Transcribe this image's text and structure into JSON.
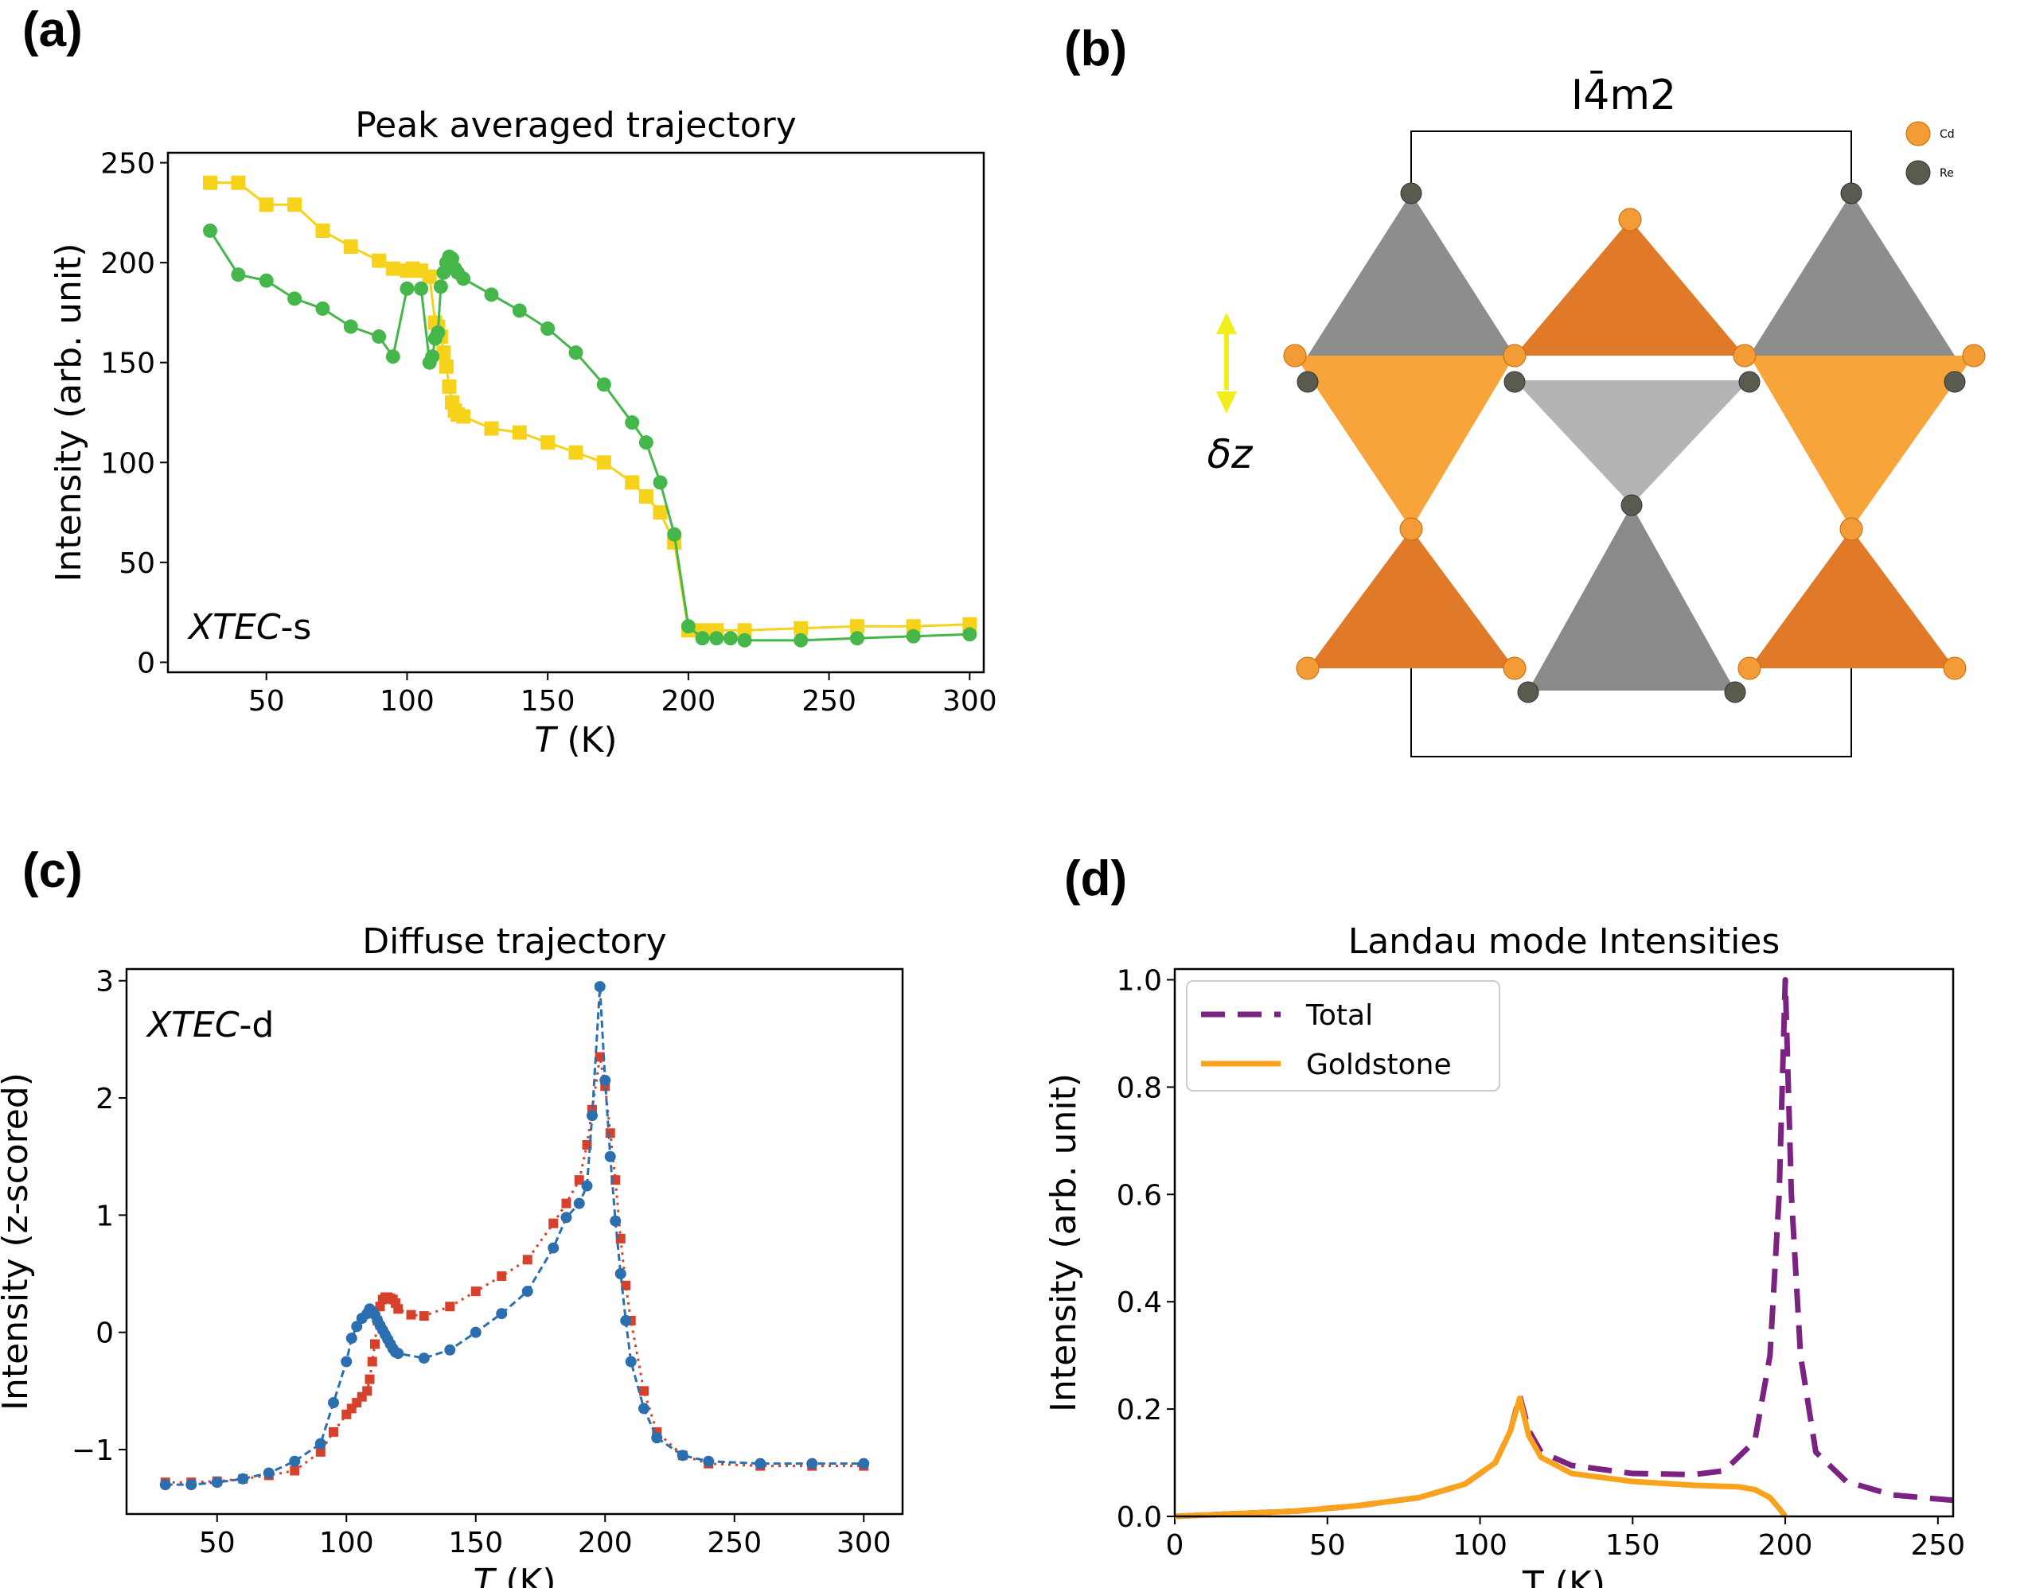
{
  "panels": {
    "a": {
      "label": "(a)"
    },
    "b": {
      "label": "(b)",
      "title": "I4̄m2",
      "delta": "δz",
      "legend": [
        {
          "name": "Cd",
          "color": "#f39c35"
        },
        {
          "name": "Re",
          "color": "#555548"
        }
      ],
      "colors": {
        "cd_dark": "#e07a28",
        "cd_light": "#f7a43a",
        "re_dark": "#8a8a8a",
        "re_light": "#b3b3b3",
        "arrow": "#f2ee1c"
      }
    },
    "c": {
      "label": "(c)"
    },
    "d": {
      "label": "(d)"
    }
  },
  "chart_data": [
    {
      "id": "a",
      "type": "scatter",
      "title": "Peak averaged trajectory",
      "xlabel_italic": "T",
      "xlabel_rest": " (K)",
      "ylabel": "Intensity (arb. unit)",
      "annotation_italic": "XTEC",
      "annotation_rest": "-s",
      "xlim": [
        15,
        305
      ],
      "ylim": [
        -5,
        255
      ],
      "xticks": [
        50,
        100,
        150,
        200,
        250,
        300
      ],
      "yticks": [
        0,
        50,
        100,
        150,
        200,
        250
      ],
      "series": [
        {
          "name": "yellow",
          "color": "#f6d21a",
          "marker": "square",
          "x": [
            30,
            40,
            50,
            60,
            70,
            80,
            90,
            95,
            100,
            102,
            105,
            108,
            110,
            111,
            112,
            113,
            114,
            115,
            116,
            117,
            118,
            120,
            130,
            140,
            150,
            160,
            170,
            180,
            185,
            190,
            195,
            200,
            205,
            210,
            220,
            240,
            260,
            280,
            300
          ],
          "y": [
            240,
            240,
            229,
            229,
            216,
            208,
            201,
            197,
            196,
            197,
            196,
            193,
            170,
            168,
            163,
            155,
            148,
            138,
            130,
            126,
            124,
            123,
            117,
            115,
            110,
            105,
            100,
            90,
            83,
            75,
            60,
            16,
            16,
            16,
            16,
            17,
            18,
            18,
            19
          ]
        },
        {
          "name": "green",
          "color": "#45b649",
          "marker": "circle",
          "x": [
            30,
            40,
            50,
            60,
            70,
            80,
            90,
            95,
            100,
            105,
            108,
            109,
            110,
            111,
            112,
            113,
            114,
            115,
            116,
            117,
            118,
            120,
            130,
            140,
            150,
            160,
            170,
            180,
            185,
            190,
            195,
            200,
            205,
            210,
            215,
            220,
            240,
            260,
            280,
            300
          ],
          "y": [
            216,
            194,
            191,
            182,
            177,
            168,
            163,
            153,
            187,
            187,
            150,
            153,
            162,
            165,
            188,
            195,
            200,
            203,
            202,
            197,
            195,
            192,
            184,
            176,
            167,
            155,
            139,
            120,
            110,
            90,
            64,
            18,
            12,
            12,
            12,
            11,
            11,
            12,
            13,
            14
          ]
        }
      ]
    },
    {
      "id": "c",
      "type": "line",
      "title": "Diffuse trajectory",
      "xlabel_italic": "T",
      "xlabel_rest": " (K)",
      "ylabel": "Intensity (z-scored)",
      "annotation_italic": "XTEC",
      "annotation_rest": "-d",
      "xlim": [
        15,
        315
      ],
      "ylim": [
        -1.55,
        3.1
      ],
      "xticks": [
        50,
        100,
        150,
        200,
        250,
        300
      ],
      "yticks": [
        -1,
        0,
        1,
        2,
        3
      ],
      "ytick_labels": [
        "−1",
        "0",
        "1",
        "2",
        "3"
      ],
      "series": [
        {
          "name": "red",
          "color": "#d7402a",
          "marker": "square",
          "dash": "3,6",
          "x": [
            30,
            40,
            50,
            60,
            70,
            80,
            90,
            95,
            100,
            102,
            104,
            106,
            108,
            109,
            110,
            111,
            112,
            113,
            114,
            115,
            116,
            117,
            118,
            119,
            120,
            125,
            130,
            140,
            150,
            160,
            170,
            180,
            185,
            190,
            193,
            195,
            198,
            200,
            202,
            204,
            206,
            208,
            210,
            215,
            220,
            230,
            240,
            260,
            280,
            300
          ],
          "y": [
            -1.28,
            -1.28,
            -1.27,
            -1.25,
            -1.22,
            -1.18,
            -1.02,
            -0.85,
            -0.7,
            -0.65,
            -0.6,
            -0.55,
            -0.5,
            -0.4,
            -0.25,
            -0.1,
            0.1,
            0.22,
            0.28,
            0.3,
            0.3,
            0.29,
            0.28,
            0.25,
            0.2,
            0.15,
            0.14,
            0.22,
            0.35,
            0.48,
            0.62,
            0.93,
            1.1,
            1.3,
            1.6,
            1.9,
            2.35,
            2.1,
            1.7,
            1.3,
            0.8,
            0.4,
            0.1,
            -0.5,
            -0.85,
            -1.05,
            -1.12,
            -1.14,
            -1.14,
            -1.14
          ]
        },
        {
          "name": "blue",
          "color": "#2c6fb0",
          "marker": "circle",
          "dash": "9,5",
          "x": [
            30,
            40,
            50,
            60,
            70,
            80,
            90,
            95,
            100,
            102,
            104,
            106,
            108,
            109,
            110,
            111,
            112,
            113,
            114,
            115,
            116,
            117,
            118,
            119,
            120,
            130,
            140,
            150,
            160,
            170,
            180,
            185,
            190,
            193,
            195,
            198,
            200,
            202,
            204,
            206,
            208,
            210,
            215,
            220,
            230,
            240,
            260,
            280,
            300
          ],
          "y": [
            -1.3,
            -1.3,
            -1.28,
            -1.25,
            -1.2,
            -1.1,
            -0.95,
            -0.6,
            -0.25,
            -0.05,
            0.05,
            0.12,
            0.16,
            0.2,
            0.18,
            0.15,
            0.1,
            0.06,
            0.02,
            -0.02,
            -0.06,
            -0.1,
            -0.14,
            -0.17,
            -0.18,
            -0.22,
            -0.15,
            0.0,
            0.16,
            0.35,
            0.72,
            0.98,
            1.1,
            1.25,
            1.85,
            2.95,
            2.15,
            1.5,
            0.95,
            0.5,
            0.1,
            -0.25,
            -0.65,
            -0.9,
            -1.05,
            -1.1,
            -1.12,
            -1.12,
            -1.12
          ]
        }
      ]
    },
    {
      "id": "d",
      "type": "line",
      "title": "Landau mode Intensities",
      "xlabel_italic": "",
      "xlabel_rest": "T (K)",
      "ylabel": "Intensity (arb. unit)",
      "xlim": [
        0,
        255
      ],
      "ylim": [
        0,
        1.02
      ],
      "xticks": [
        0,
        50,
        100,
        150,
        200,
        250
      ],
      "yticks": [
        0.0,
        0.2,
        0.4,
        0.6,
        0.8,
        1.0
      ],
      "ytick_labels": [
        "0.0",
        "0.2",
        "0.4",
        "0.6",
        "0.8",
        "1.0"
      ],
      "legend": [
        "Total",
        "Goldstone"
      ],
      "series": [
        {
          "name": "Total",
          "color": "#7b2283",
          "dash": "30,16",
          "x": [
            0,
            20,
            40,
            60,
            80,
            95,
            105,
            110,
            113,
            116,
            120,
            130,
            150,
            170,
            180,
            190,
            195,
            198,
            199,
            200,
            201,
            202,
            205,
            210,
            220,
            235,
            255
          ],
          "y": [
            0.0,
            0.005,
            0.01,
            0.02,
            0.035,
            0.06,
            0.1,
            0.16,
            0.225,
            0.16,
            0.12,
            0.095,
            0.08,
            0.078,
            0.085,
            0.14,
            0.3,
            0.6,
            0.8,
            1.0,
            0.8,
            0.6,
            0.3,
            0.12,
            0.065,
            0.04,
            0.03
          ]
        },
        {
          "name": "Goldstone",
          "color": "#f9a21b",
          "x": [
            0,
            20,
            40,
            60,
            80,
            95,
            105,
            110,
            113,
            116,
            120,
            130,
            150,
            170,
            185,
            190,
            195,
            198,
            200
          ],
          "y": [
            0.0,
            0.005,
            0.01,
            0.02,
            0.035,
            0.06,
            0.1,
            0.16,
            0.22,
            0.15,
            0.11,
            0.08,
            0.065,
            0.058,
            0.055,
            0.05,
            0.035,
            0.015,
            0.0
          ]
        }
      ]
    }
  ]
}
